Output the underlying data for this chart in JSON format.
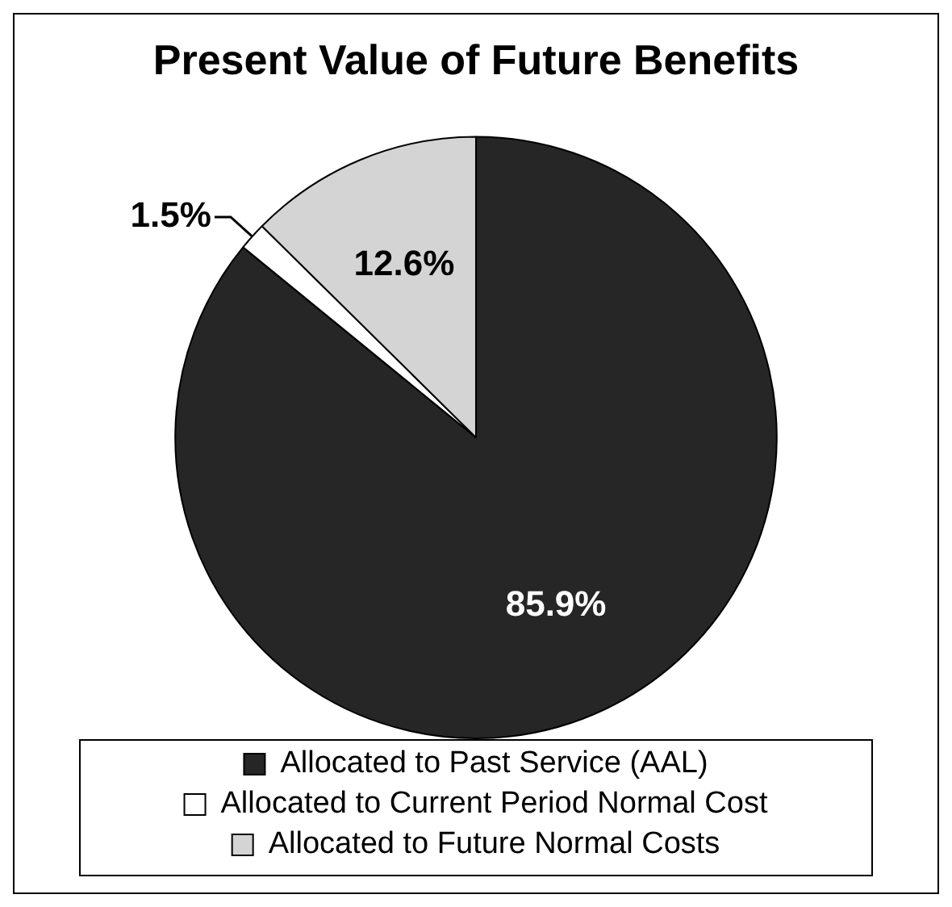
{
  "chart_data": {
    "type": "pie",
    "title": "Present Value of Future Benefits",
    "categories": [
      "Allocated to Past Service (AAL)",
      "Allocated to Current Period Normal Cost",
      "Allocated to Future Normal Costs"
    ],
    "values": [
      85.9,
      1.5,
      12.6
    ],
    "colors": [
      "#262626",
      "#ffffff",
      "#d4d4d4"
    ],
    "value_labels": [
      "85.9%",
      "1.5%",
      "12.6%"
    ],
    "legend": "bottom"
  }
}
